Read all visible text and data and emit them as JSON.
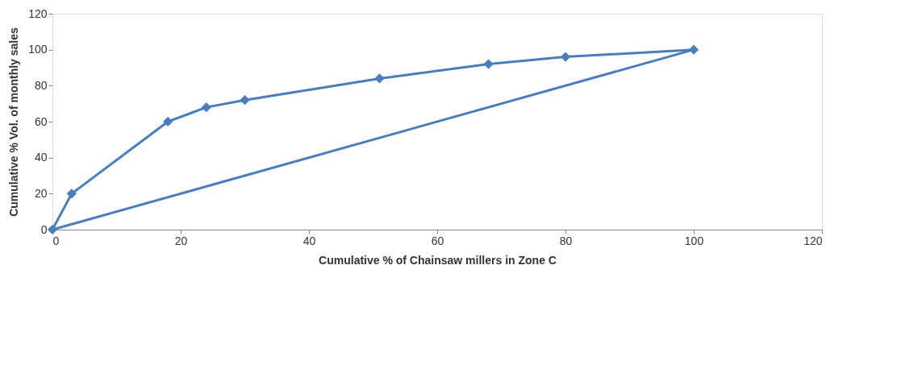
{
  "chart_data": {
    "type": "line",
    "xlabel": "Cumulative % of Chainsaw millers in Zone C",
    "ylabel": "Cumulative % Vol. of monthly sales",
    "xlim": [
      0,
      120
    ],
    "xticks": [
      0,
      20,
      40,
      60,
      80,
      100,
      120
    ],
    "ylim": [
      0,
      120
    ],
    "yticks": [
      0,
      20,
      40,
      60,
      80,
      100,
      120
    ],
    "grid": false,
    "series": [
      {
        "color": "#4a7ebb",
        "marker": "diamond",
        "x": [
          0,
          3,
          18,
          24,
          30,
          51,
          68,
          80,
          100
        ],
        "values": [
          0,
          20,
          60,
          68,
          72,
          84,
          92,
          96,
          100
        ]
      },
      {
        "color": "#4a7ebb",
        "marker": "none",
        "x": [
          0,
          100
        ],
        "values": [
          0,
          100
        ]
      }
    ]
  }
}
